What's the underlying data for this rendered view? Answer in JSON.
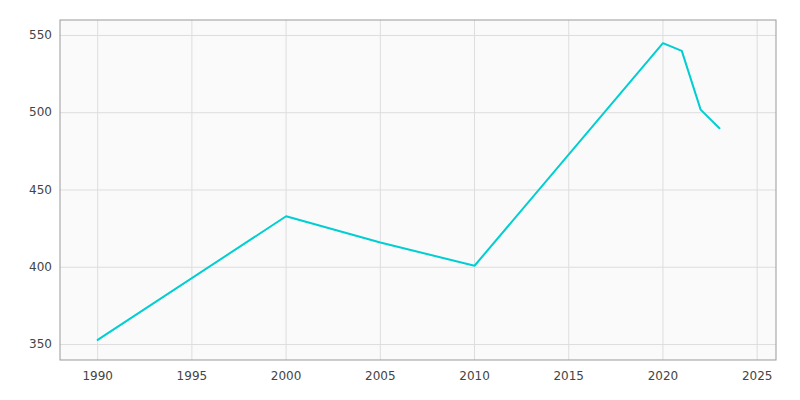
{
  "chart_data": {
    "type": "line",
    "x": [
      1990,
      2000,
      2005,
      2010,
      2020,
      2021,
      2022,
      2023
    ],
    "values": [
      353,
      433,
      416,
      401,
      545,
      540,
      502,
      490
    ],
    "color": "#00CED1",
    "xlim": [
      1988,
      2026
    ],
    "ylim": [
      340,
      560
    ],
    "xticks": [
      1990,
      1995,
      2000,
      2005,
      2010,
      2015,
      2020,
      2025
    ],
    "yticks": [
      350,
      400,
      450,
      500,
      550
    ],
    "grid": true
  }
}
